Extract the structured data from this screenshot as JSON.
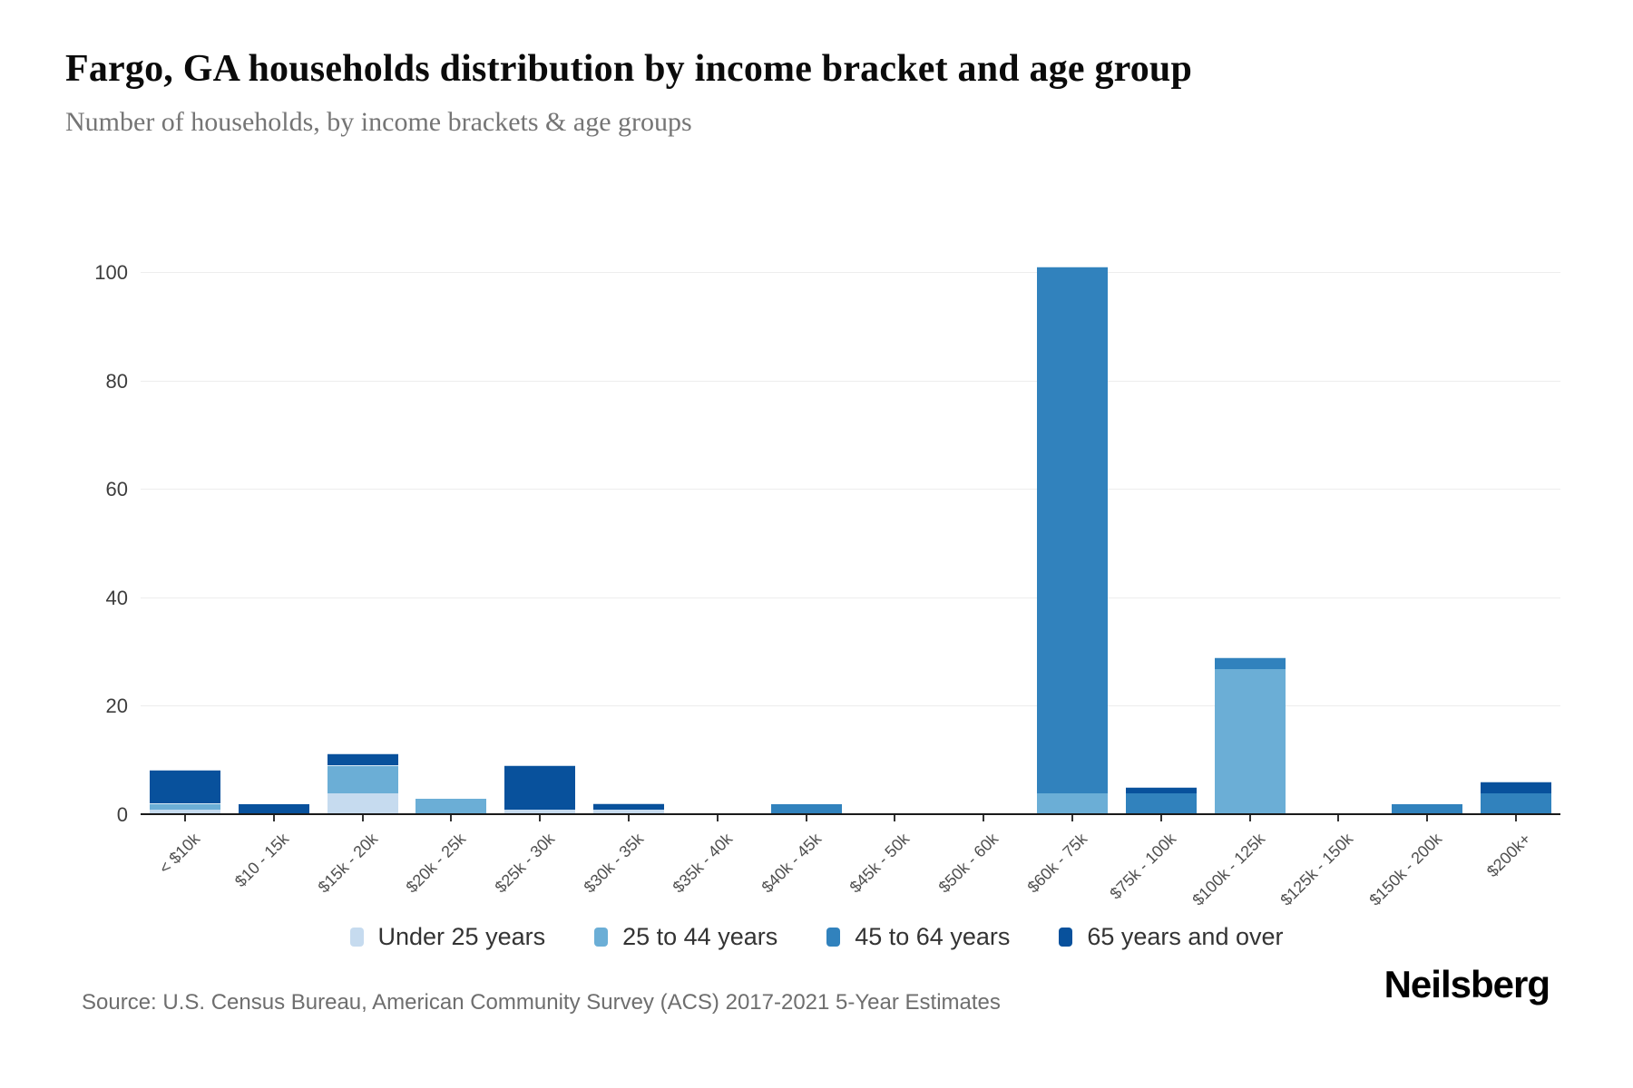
{
  "header": {
    "title": "Fargo, GA households distribution by income bracket and age group",
    "subtitle": "Number of households, by income brackets & age groups"
  },
  "chart_data": {
    "type": "bar",
    "stacked": true,
    "title": "Fargo, GA households distribution by income bracket and age group",
    "subtitle": "Number of households, by income brackets & age groups",
    "xlabel": "",
    "ylabel": "",
    "ylim": [
      0,
      100
    ],
    "yticks": [
      0,
      20,
      40,
      60,
      80,
      100
    ],
    "grid": "horizontal",
    "legend_position": "bottom",
    "categories": [
      "< $10k",
      "$10 - 15k",
      "$15k - 20k",
      "$20k - 25k",
      "$25k - 30k",
      "$30k - 35k",
      "$35k - 40k",
      "$40k - 45k",
      "$45k - 50k",
      "$50k - 60k",
      "$60k - 75k",
      "$75k - 100k",
      "$100k - 125k",
      "$125k - 150k",
      "$150k - 200k",
      "$200k+"
    ],
    "series": [
      {
        "name": "Under 25 years",
        "color": "#c6dbef",
        "values": [
          1,
          0,
          4,
          0,
          1,
          1,
          0,
          0,
          0,
          0,
          0,
          0,
          0,
          0,
          0,
          0
        ]
      },
      {
        "name": "25 to 44 years",
        "color": "#6baed6",
        "values": [
          1,
          0,
          5,
          3,
          0,
          0,
          0,
          0,
          0,
          0,
          4,
          0,
          27,
          0,
          0,
          0
        ]
      },
      {
        "name": "45 to 64 years",
        "color": "#3182bd",
        "values": [
          0,
          0,
          0,
          0,
          0,
          0,
          0,
          2,
          0,
          0,
          97,
          4,
          2,
          0,
          2,
          4
        ]
      },
      {
        "name": "65 years and over",
        "color": "#08519c",
        "values": [
          6,
          2,
          2,
          0,
          8,
          1,
          0,
          0,
          0,
          0,
          0,
          1,
          0,
          0,
          0,
          2
        ]
      }
    ]
  },
  "footer": {
    "source": "Source: U.S. Census Bureau, American Community Survey (ACS) 2017-2021 5-Year Estimates",
    "brand": "Neilsberg"
  }
}
